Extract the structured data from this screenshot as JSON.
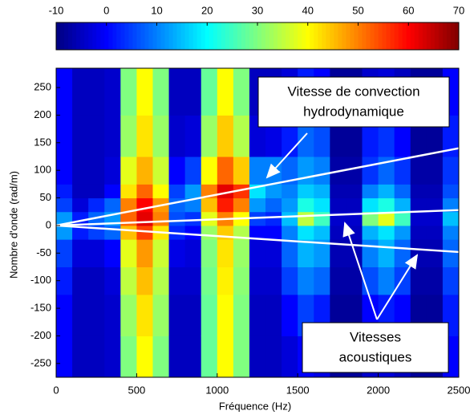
{
  "chart_data": {
    "type": "heatmap",
    "xlabel": "Fréquence (Hz)",
    "ylabel": "Nombre d'onde (rad/m)",
    "xbins": [
      0,
      100,
      200,
      300,
      400,
      500,
      600,
      700,
      800,
      900,
      1000,
      1100,
      1200,
      1300,
      1400,
      1500,
      1600,
      1700,
      1800,
      1900,
      2000,
      2100,
      2200,
      2300,
      2400,
      2500
    ],
    "ybins": [
      -275,
      -200,
      -125,
      -75,
      -25,
      0,
      25,
      50,
      75,
      125,
      200,
      285
    ],
    "z": [
      [
        0,
        0,
        2,
        5,
        12,
        12,
        5,
        2,
        0,
        0,
        0
      ],
      [
        -5,
        -5,
        -5,
        -3,
        2,
        2,
        -3,
        -5,
        -5,
        -5,
        -5
      ],
      [
        -5,
        -5,
        -5,
        -3,
        5,
        8,
        3,
        -5,
        -5,
        -5,
        -5
      ],
      [
        -4,
        -4,
        -3,
        0,
        8,
        12,
        8,
        0,
        -3,
        -4,
        -4
      ],
      [
        30,
        32,
        35,
        38,
        45,
        52,
        50,
        42,
        38,
        32,
        30
      ],
      [
        40,
        42,
        45,
        48,
        55,
        62,
        60,
        52,
        46,
        42,
        40
      ],
      [
        30,
        32,
        34,
        36,
        42,
        50,
        48,
        40,
        36,
        32,
        30
      ],
      [
        -5,
        -5,
        -4,
        -2,
        3,
        6,
        8,
        5,
        0,
        -4,
        -5
      ],
      [
        -5,
        -5,
        -4,
        -3,
        0,
        4,
        10,
        12,
        5,
        -3,
        -5
      ],
      [
        28,
        28,
        29,
        30,
        32,
        38,
        45,
        50,
        40,
        32,
        28
      ],
      [
        40,
        40,
        41,
        42,
        44,
        50,
        58,
        62,
        52,
        44,
        40
      ],
      [
        30,
        30,
        31,
        32,
        34,
        40,
        50,
        56,
        44,
        34,
        30
      ],
      [
        -5,
        -5,
        -4,
        -3,
        0,
        5,
        12,
        18,
        10,
        -3,
        -5
      ],
      [
        -5,
        -5,
        -4,
        -3,
        0,
        3,
        8,
        12,
        10,
        -2,
        -5
      ],
      [
        -3,
        0,
        5,
        8,
        10,
        15,
        12,
        10,
        8,
        2,
        -3
      ],
      [
        0,
        5,
        10,
        14,
        18,
        35,
        22,
        16,
        12,
        8,
        2
      ],
      [
        -2,
        2,
        8,
        12,
        15,
        25,
        18,
        14,
        10,
        6,
        0
      ],
      [
        -8,
        -8,
        -7,
        -6,
        -5,
        -4,
        -5,
        -6,
        -7,
        -8,
        -8
      ],
      [
        -8,
        -8,
        -7,
        -6,
        -5,
        -4,
        -5,
        -6,
        -7,
        -8,
        -8
      ],
      [
        -4,
        0,
        6,
        10,
        14,
        30,
        18,
        10,
        4,
        2,
        -4
      ],
      [
        -3,
        2,
        10,
        14,
        18,
        38,
        22,
        14,
        8,
        4,
        -3
      ],
      [
        -5,
        0,
        5,
        8,
        12,
        25,
        14,
        8,
        4,
        0,
        -5
      ],
      [
        -8,
        -8,
        -7,
        -6,
        -5,
        -4,
        -5,
        -6,
        -7,
        -8,
        -8
      ],
      [
        -8,
        -8,
        -7,
        -6,
        -5,
        -4,
        -5,
        -6,
        -7,
        -8,
        -8
      ],
      [
        0,
        2,
        5,
        8,
        10,
        15,
        10,
        6,
        4,
        2,
        0
      ]
    ],
    "xlim": [
      0,
      2500
    ],
    "ylim": [
      -275,
      285
    ],
    "xticks": [
      0,
      500,
      1000,
      1500,
      2000,
      2500
    ],
    "yticks": [
      -250,
      -200,
      -150,
      -100,
      -50,
      0,
      50,
      100,
      150,
      200,
      250
    ],
    "clim": [
      -10,
      70
    ],
    "colorbar_ticks": [
      -10,
      0,
      10,
      20,
      30,
      40,
      50,
      60,
      70
    ],
    "lines": [
      {
        "x": [
          0,
          2500
        ],
        "y": [
          0,
          140
        ]
      },
      {
        "x": [
          0,
          2500
        ],
        "y": [
          0,
          28
        ]
      },
      {
        "x": [
          0,
          2500
        ],
        "y": [
          0,
          -48
        ]
      }
    ],
    "annotations": [
      {
        "lines": [
          "Vitesse de convection",
          "hydrodynamique"
        ]
      },
      {
        "lines": [
          "Vitesses",
          "acoustiques"
        ]
      }
    ]
  }
}
